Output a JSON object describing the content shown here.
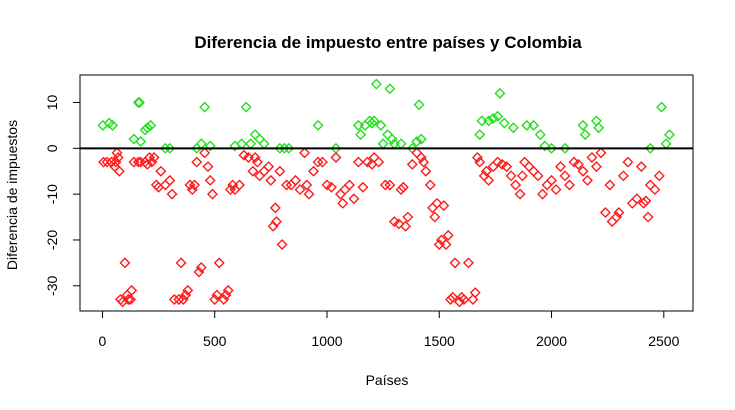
{
  "chart_data": {
    "type": "scatter",
    "title": "Diferencia de impuesto entre países y Colombia",
    "xlabel": "Países",
    "ylabel": "Diferencia de impuestos",
    "xlim": [
      -100,
      2630
    ],
    "ylim": [
      -35.5,
      16
    ],
    "xticks": [
      0,
      500,
      1000,
      1500,
      2000,
      2500
    ],
    "yticks": [
      -30,
      -20,
      -10,
      0,
      10
    ],
    "reference_line": 0,
    "marker": "diamond",
    "grid": false,
    "legend": "none",
    "colors": {
      "positive": "#22e01c",
      "negative": "#ff1a1a",
      "line": "#000000"
    },
    "series": [
      {
        "color": "positive",
        "points": [
          [
            2,
            5
          ],
          [
            30,
            5.5
          ],
          [
            45,
            5
          ],
          [
            140,
            2
          ],
          [
            160,
            10
          ],
          [
            165,
            10
          ],
          [
            170,
            1.5
          ],
          [
            190,
            4
          ],
          [
            200,
            4.5
          ],
          [
            215,
            5
          ],
          [
            280,
            0
          ],
          [
            300,
            0
          ],
          [
            420,
            0
          ],
          [
            440,
            1
          ],
          [
            455,
            9
          ],
          [
            480,
            0.5
          ],
          [
            590,
            0.5
          ],
          [
            620,
            1
          ],
          [
            640,
            9
          ],
          [
            660,
            1
          ],
          [
            680,
            3
          ],
          [
            700,
            2
          ],
          [
            720,
            1
          ],
          [
            790,
            0
          ],
          [
            810,
            0
          ],
          [
            830,
            0
          ],
          [
            960,
            5
          ],
          [
            1040,
            0
          ],
          [
            1140,
            5
          ],
          [
            1150,
            3
          ],
          [
            1170,
            5
          ],
          [
            1190,
            6
          ],
          [
            1200,
            5.5
          ],
          [
            1210,
            6
          ],
          [
            1220,
            14
          ],
          [
            1240,
            5
          ],
          [
            1250,
            1
          ],
          [
            1270,
            3
          ],
          [
            1280,
            13
          ],
          [
            1290,
            2
          ],
          [
            1300,
            1
          ],
          [
            1330,
            1
          ],
          [
            1380,
            0
          ],
          [
            1400,
            1.5
          ],
          [
            1410,
            9.5
          ],
          [
            1420,
            2
          ],
          [
            1680,
            3
          ],
          [
            1690,
            6
          ],
          [
            1720,
            6
          ],
          [
            1740,
            6.5
          ],
          [
            1760,
            7
          ],
          [
            1770,
            12
          ],
          [
            1790,
            5.5
          ],
          [
            1830,
            4.5
          ],
          [
            1890,
            5
          ],
          [
            1920,
            5
          ],
          [
            1950,
            3
          ],
          [
            1970,
            0.5
          ],
          [
            2000,
            0
          ],
          [
            2060,
            0
          ],
          [
            2140,
            5
          ],
          [
            2150,
            3
          ],
          [
            2200,
            6
          ],
          [
            2210,
            4.5
          ],
          [
            2440,
            0
          ],
          [
            2490,
            9
          ],
          [
            2510,
            1
          ],
          [
            2525,
            3
          ]
        ]
      },
      {
        "color": "negative",
        "points": [
          [
            5,
            -3
          ],
          [
            20,
            -3
          ],
          [
            40,
            -3
          ],
          [
            55,
            -4
          ],
          [
            60,
            -3
          ],
          [
            65,
            -1
          ],
          [
            70,
            -2
          ],
          [
            75,
            -5
          ],
          [
            80,
            -33
          ],
          [
            90,
            -33.5
          ],
          [
            100,
            -25
          ],
          [
            110,
            -32
          ],
          [
            115,
            -33
          ],
          [
            125,
            -33
          ],
          [
            130,
            -31
          ],
          [
            140,
            -3
          ],
          [
            160,
            -3
          ],
          [
            170,
            -3
          ],
          [
            190,
            -3
          ],
          [
            200,
            -3.5
          ],
          [
            210,
            -2
          ],
          [
            220,
            -3
          ],
          [
            230,
            -2
          ],
          [
            240,
            -8
          ],
          [
            250,
            -8.5
          ],
          [
            260,
            -5
          ],
          [
            280,
            -8
          ],
          [
            300,
            -7
          ],
          [
            310,
            -10
          ],
          [
            320,
            -33
          ],
          [
            340,
            -33
          ],
          [
            350,
            -25
          ],
          [
            360,
            -33
          ],
          [
            370,
            -32
          ],
          [
            380,
            -31
          ],
          [
            390,
            -8
          ],
          [
            400,
            -9
          ],
          [
            410,
            -8
          ],
          [
            420,
            -3
          ],
          [
            430,
            -27
          ],
          [
            440,
            -26
          ],
          [
            455,
            -1
          ],
          [
            470,
            -4
          ],
          [
            480,
            -7
          ],
          [
            490,
            -10
          ],
          [
            500,
            -33
          ],
          [
            510,
            -32
          ],
          [
            520,
            -25
          ],
          [
            540,
            -33
          ],
          [
            550,
            -32
          ],
          [
            560,
            -31
          ],
          [
            570,
            -9
          ],
          [
            580,
            -8
          ],
          [
            590,
            -9
          ],
          [
            610,
            -8
          ],
          [
            630,
            -1.5
          ],
          [
            650,
            -2
          ],
          [
            670,
            -5
          ],
          [
            680,
            -2
          ],
          [
            690,
            -3
          ],
          [
            700,
            -6
          ],
          [
            720,
            -5
          ],
          [
            740,
            -4
          ],
          [
            750,
            -7
          ],
          [
            760,
            -17
          ],
          [
            770,
            -13
          ],
          [
            775,
            -16
          ],
          [
            790,
            -5
          ],
          [
            800,
            -21
          ],
          [
            820,
            -8
          ],
          [
            840,
            -8
          ],
          [
            860,
            -7
          ],
          [
            880,
            -9
          ],
          [
            900,
            -1
          ],
          [
            910,
            -8
          ],
          [
            920,
            -10
          ],
          [
            940,
            -5
          ],
          [
            960,
            -3
          ],
          [
            980,
            -3
          ],
          [
            1000,
            -8
          ],
          [
            1020,
            -8.5
          ],
          [
            1040,
            -2
          ],
          [
            1060,
            -10
          ],
          [
            1070,
            -12
          ],
          [
            1080,
            -9
          ],
          [
            1100,
            -8
          ],
          [
            1120,
            -11
          ],
          [
            1140,
            -3
          ],
          [
            1160,
            -8.5
          ],
          [
            1180,
            -3
          ],
          [
            1200,
            -3.5
          ],
          [
            1210,
            -2
          ],
          [
            1230,
            -3
          ],
          [
            1260,
            -8
          ],
          [
            1280,
            -8
          ],
          [
            1300,
            -16
          ],
          [
            1320,
            -16.5
          ],
          [
            1330,
            -9
          ],
          [
            1340,
            -8.5
          ],
          [
            1350,
            -17
          ],
          [
            1360,
            -15
          ],
          [
            1380,
            -3.5
          ],
          [
            1400,
            -1
          ],
          [
            1420,
            -2
          ],
          [
            1430,
            -3
          ],
          [
            1440,
            -5
          ],
          [
            1460,
            -8
          ],
          [
            1470,
            -13
          ],
          [
            1480,
            -15
          ],
          [
            1490,
            -12
          ],
          [
            1500,
            -21
          ],
          [
            1510,
            -20
          ],
          [
            1520,
            -12.5
          ],
          [
            1530,
            -21
          ],
          [
            1540,
            -19
          ],
          [
            1550,
            -33
          ],
          [
            1560,
            -32.5
          ],
          [
            1570,
            -25
          ],
          [
            1590,
            -33.5
          ],
          [
            1600,
            -32.5
          ],
          [
            1610,
            -33
          ],
          [
            1630,
            -25
          ],
          [
            1650,
            -33
          ],
          [
            1660,
            -31.5
          ],
          [
            1670,
            -2
          ],
          [
            1680,
            -3
          ],
          [
            1700,
            -6
          ],
          [
            1710,
            -5
          ],
          [
            1720,
            -7
          ],
          [
            1740,
            -4
          ],
          [
            1760,
            -3
          ],
          [
            1780,
            -3.5
          ],
          [
            1800,
            -4
          ],
          [
            1820,
            -6
          ],
          [
            1840,
            -8
          ],
          [
            1860,
            -10
          ],
          [
            1870,
            -6
          ],
          [
            1880,
            -3
          ],
          [
            1900,
            -4
          ],
          [
            1920,
            -5
          ],
          [
            1940,
            -6
          ],
          [
            1960,
            -10
          ],
          [
            1980,
            -8
          ],
          [
            2000,
            -7
          ],
          [
            2020,
            -9
          ],
          [
            2040,
            -4
          ],
          [
            2060,
            -6
          ],
          [
            2080,
            -8
          ],
          [
            2100,
            -3
          ],
          [
            2120,
            -3.5
          ],
          [
            2140,
            -5
          ],
          [
            2160,
            -7
          ],
          [
            2180,
            -2
          ],
          [
            2200,
            -4
          ],
          [
            2220,
            -1
          ],
          [
            2240,
            -14
          ],
          [
            2260,
            -8
          ],
          [
            2270,
            -16
          ],
          [
            2290,
            -15
          ],
          [
            2300,
            -14
          ],
          [
            2320,
            -6
          ],
          [
            2340,
            -3
          ],
          [
            2360,
            -12
          ],
          [
            2380,
            -11
          ],
          [
            2400,
            -4
          ],
          [
            2410,
            -12
          ],
          [
            2420,
            -11.5
          ],
          [
            2430,
            -15
          ],
          [
            2440,
            -8
          ],
          [
            2460,
            -9
          ],
          [
            2480,
            -6
          ]
        ]
      }
    ]
  }
}
